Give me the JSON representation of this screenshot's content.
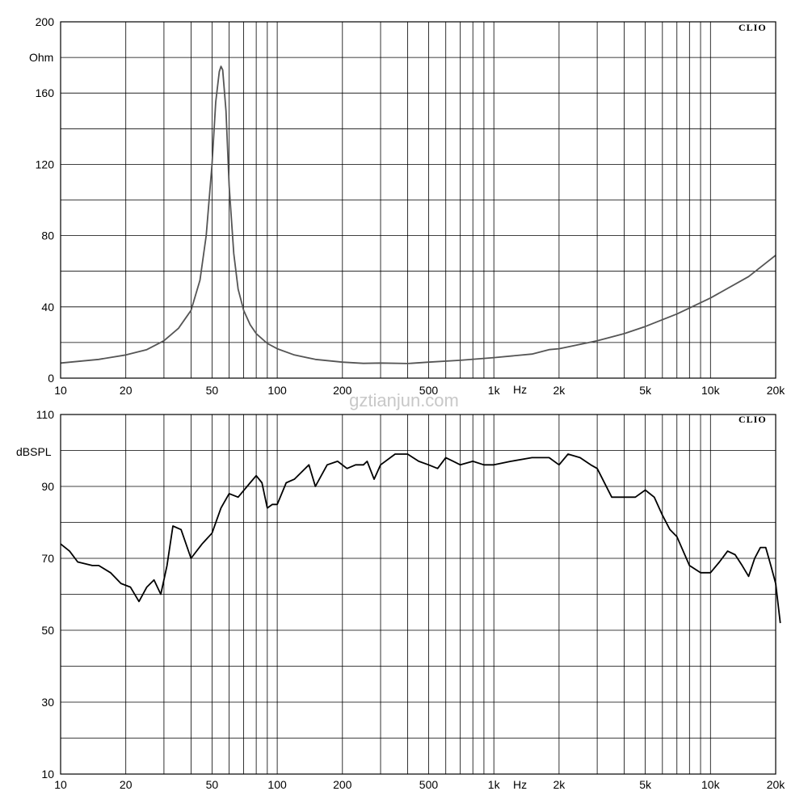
{
  "watermark": "gztianjun.com",
  "chart_data": [
    {
      "type": "line",
      "brand": "CLIO",
      "ylabel": "Ohm",
      "xlabel": "Hz",
      "x_scale": "log",
      "xlim": [
        10,
        20000
      ],
      "ylim": [
        0,
        200
      ],
      "grid": true,
      "x_tick_labels": [
        {
          "x": 10,
          "label": "10"
        },
        {
          "x": 20,
          "label": "20"
        },
        {
          "x": 50,
          "label": "50"
        },
        {
          "x": 100,
          "label": "100"
        },
        {
          "x": 200,
          "label": "200"
        },
        {
          "x": 500,
          "label": "500"
        },
        {
          "x": 1000,
          "label": "1k"
        },
        {
          "x": 2000,
          "label": "2k"
        },
        {
          "x": 5000,
          "label": "5k"
        },
        {
          "x": 10000,
          "label": "10k"
        },
        {
          "x": 20000,
          "label": "20k"
        }
      ],
      "y_tick_labels": [
        "0",
        "40",
        "80",
        "120",
        "160",
        "200"
      ],
      "series": [
        {
          "color": "#555555",
          "x": [
            10,
            15,
            20,
            25,
            30,
            35,
            40,
            44,
            47,
            50,
            52,
            54,
            55,
            56,
            58,
            60,
            63,
            66,
            70,
            75,
            80,
            90,
            100,
            120,
            150,
            200,
            250,
            300,
            400,
            500,
            700,
            1000,
            1500,
            1800,
            2000,
            3000,
            4000,
            5000,
            7000,
            10000,
            15000,
            20000
          ],
          "y": [
            8.5,
            10.5,
            13,
            16,
            21,
            28,
            38,
            55,
            80,
            120,
            155,
            172,
            175,
            173,
            150,
            108,
            70,
            50,
            38,
            30,
            25,
            19.5,
            16.5,
            13,
            10.5,
            9,
            8.3,
            8.5,
            8.2,
            9,
            10,
            11.5,
            13.5,
            16,
            16.5,
            21,
            25,
            29,
            36,
            45,
            57,
            69
          ]
        }
      ]
    },
    {
      "type": "line",
      "brand": "CLIO",
      "ylabel": "dBSPL",
      "xlabel": "Hz",
      "x_scale": "log",
      "xlim": [
        10,
        20000
      ],
      "ylim": [
        10,
        110
      ],
      "grid": true,
      "x_tick_labels": [
        {
          "x": 10,
          "label": "10"
        },
        {
          "x": 20,
          "label": "20"
        },
        {
          "x": 50,
          "label": "50"
        },
        {
          "x": 100,
          "label": "100"
        },
        {
          "x": 200,
          "label": "200"
        },
        {
          "x": 500,
          "label": "500"
        },
        {
          "x": 1000,
          "label": "1k"
        },
        {
          "x": 2000,
          "label": "2k"
        },
        {
          "x": 5000,
          "label": "5k"
        },
        {
          "x": 10000,
          "label": "10k"
        },
        {
          "x": 20000,
          "label": "20k"
        }
      ],
      "y_tick_labels": [
        "10",
        "30",
        "50",
        "70",
        "90",
        "110"
      ],
      "series": [
        {
          "color": "#000000",
          "x": [
            10,
            11,
            12,
            14,
            15,
            17,
            19,
            21,
            23,
            25,
            27,
            29,
            31,
            33,
            36,
            40,
            45,
            50,
            55,
            60,
            66,
            75,
            80,
            85,
            90,
            95,
            100,
            110,
            120,
            140,
            150,
            170,
            190,
            210,
            230,
            250,
            260,
            280,
            300,
            350,
            400,
            450,
            500,
            550,
            600,
            650,
            700,
            800,
            900,
            1000,
            1200,
            1500,
            1800,
            2000,
            2200,
            2500,
            2800,
            3000,
            3500,
            4000,
            4500,
            5000,
            5500,
            6000,
            6500,
            7000,
            8000,
            9000,
            10000,
            11000,
            12000,
            13000,
            14000,
            15000,
            16000,
            17000,
            18000,
            19000,
            20000,
            21000
          ],
          "y": [
            74,
            72,
            69,
            68,
            68,
            66,
            63,
            62,
            58,
            62,
            64,
            60,
            68,
            79,
            78,
            70,
            74,
            77,
            84,
            88,
            87,
            91,
            93,
            91,
            84,
            85,
            85,
            91,
            92,
            96,
            90,
            96,
            97,
            95,
            96,
            96,
            97,
            92,
            96,
            99,
            99,
            97,
            96,
            95,
            98,
            97,
            96,
            97,
            96,
            96,
            97,
            98,
            98,
            96,
            99,
            98,
            96,
            95,
            87,
            87,
            87,
            89,
            87,
            82,
            78,
            76,
            68,
            66,
            66,
            69,
            72,
            71,
            68,
            65,
            70,
            73,
            73,
            68,
            63,
            52
          ]
        }
      ]
    }
  ]
}
